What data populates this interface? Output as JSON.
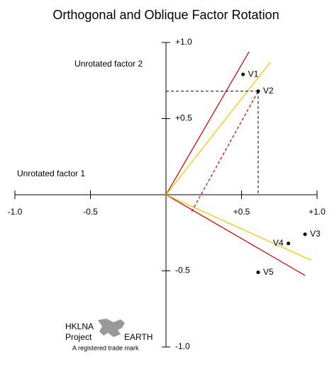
{
  "chart_data": {
    "type": "scatter",
    "title": "Orthogonal and Oblique Factor Rotation",
    "annotations": [
      "Unrotated factor 1",
      "Unrotated factor 2"
    ],
    "labels": [
      "V1",
      "V2",
      "V3",
      "V4",
      "V5"
    ],
    "x": [
      0.51,
      0.61,
      0.92,
      0.81,
      0.61
    ],
    "values": [
      0.79,
      0.68,
      -0.26,
      -0.32,
      -0.51
    ],
    "color": "#000000",
    "xlim": [
      -1,
      1
    ],
    "ylim": [
      -1,
      1
    ],
    "xticks": [
      {
        "value": -1,
        "label": "-1.0"
      },
      {
        "value": -0.5,
        "label": "-0.5"
      },
      {
        "value": 0.5,
        "label": "+0.5"
      },
      {
        "value": 1,
        "label": "+1.0"
      }
    ],
    "yticks": [
      {
        "value": 1,
        "label": "+1.0"
      },
      {
        "value": 0.5,
        "label": "+0.5"
      },
      {
        "value": -0.5,
        "label": "-0.5"
      },
      {
        "value": -1,
        "label": "-1.0"
      }
    ],
    "lines": [
      {
        "color": "#cc0000",
        "x": [
          0,
          0.55
        ],
        "values": [
          0,
          0.94
        ]
      },
      {
        "color": "#cc0000",
        "x": [
          0,
          0.92
        ],
        "values": [
          0,
          -0.53
        ]
      },
      {
        "color": "#f5c400",
        "x": [
          0,
          0.69
        ],
        "values": [
          0,
          0.87
        ]
      },
      {
        "color": "#f5c400",
        "x": [
          0,
          0.96
        ],
        "values": [
          0,
          -0.43
        ]
      }
    ],
    "projection_lines": [
      {
        "color": "#cc0000",
        "x": [
          0.17,
          0.61
        ],
        "values": [
          -0.11,
          0.68
        ]
      }
    ],
    "projection_color": "#000000"
  },
  "logo": {
    "line1": "HKLNA",
    "line2": "Project",
    "line3": "EARTH",
    "tagline": "A registered trade mark"
  }
}
